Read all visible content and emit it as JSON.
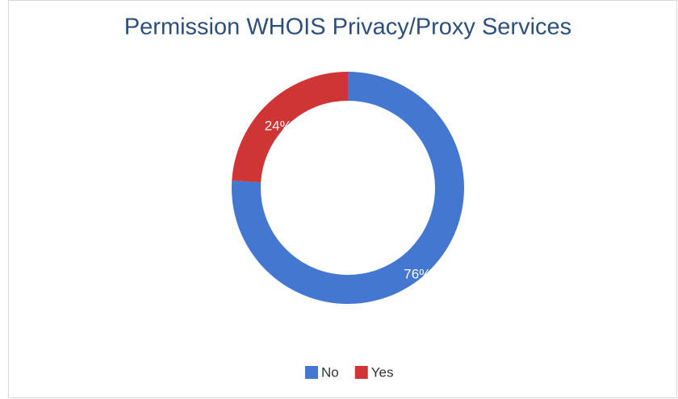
{
  "chart_data": {
    "type": "donut",
    "title": "Permission WHOIS Privacy/Proxy Services",
    "categories": [
      "No",
      "Yes"
    ],
    "values": [
      76,
      24
    ],
    "value_labels": [
      "76%",
      "24%"
    ],
    "colors": [
      "#4478d0",
      "#cf3535"
    ],
    "legend": "bottom"
  }
}
